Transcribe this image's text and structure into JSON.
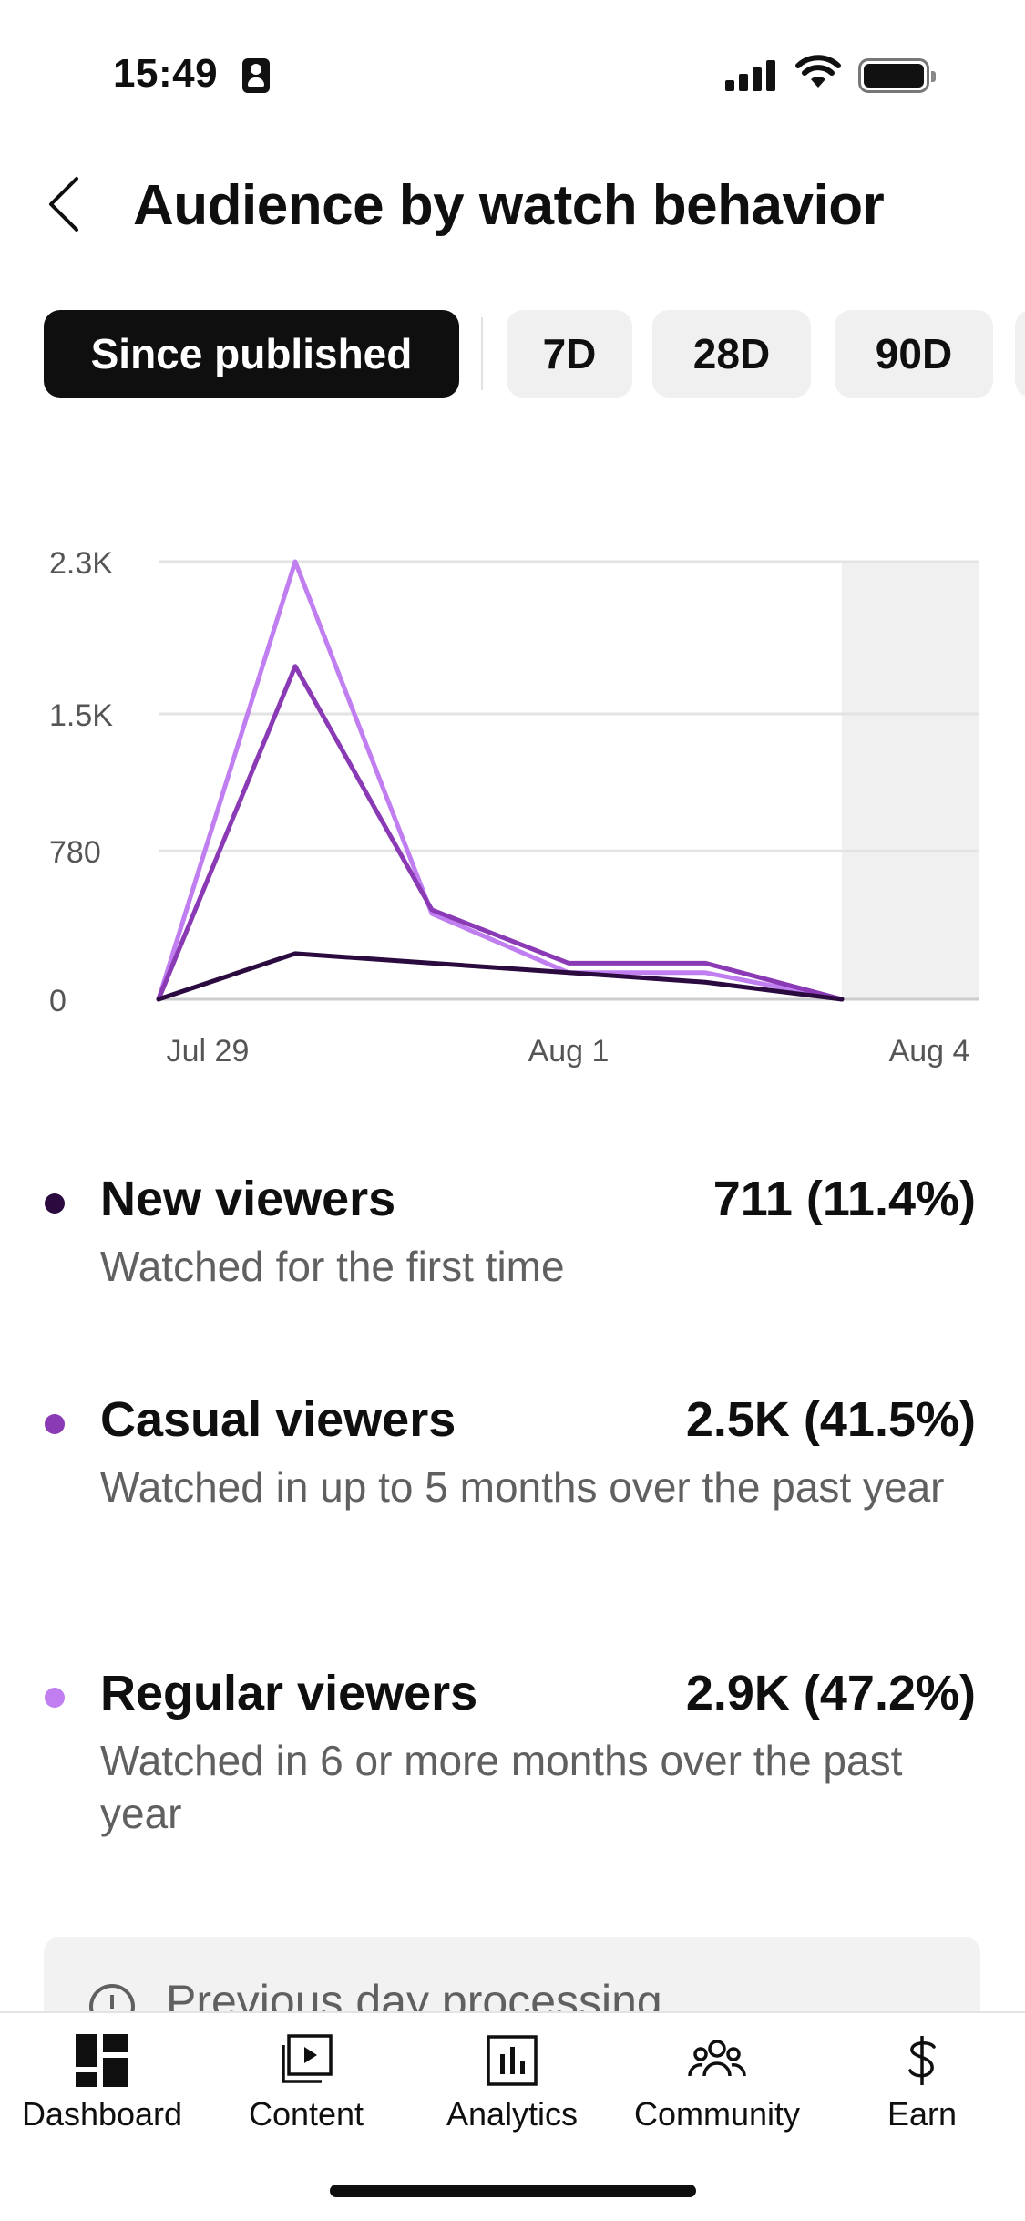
{
  "status_bar": {
    "time": "15:49"
  },
  "header": {
    "title": "Audience by watch behavior"
  },
  "chips": [
    {
      "label": "Since published",
      "active": true
    },
    {
      "label": "7D",
      "active": false
    },
    {
      "label": "28D",
      "active": false
    },
    {
      "label": "90D",
      "active": false
    }
  ],
  "chart_data": {
    "type": "line",
    "x": [
      "Jul 29",
      "Jul 30",
      "Jul 31",
      "Aug 1",
      "Aug 2",
      "Aug 3"
    ],
    "x_tick_labels": [
      "Jul 29",
      "Aug 1",
      "Aug 4"
    ],
    "y_tick_labels": [
      "0",
      "780",
      "1.5K",
      "2.3K"
    ],
    "y_ticks": [
      0,
      780,
      1500,
      2300
    ],
    "ylim": [
      0,
      2300
    ],
    "grid": true,
    "series": [
      {
        "name": "New viewers",
        "color": "#2a0a3f",
        "values": [
          0,
          240,
          190,
          140,
          90,
          0
        ]
      },
      {
        "name": "Casual viewers",
        "color": "#8a3ab4",
        "values": [
          0,
          1750,
          470,
          190,
          190,
          0
        ]
      },
      {
        "name": "Regular viewers",
        "color": "#c07ef0",
        "values": [
          0,
          2300,
          450,
          140,
          140,
          0
        ]
      }
    ],
    "shaded_region_from": "Aug 4"
  },
  "legend": [
    {
      "name": "New viewers",
      "value": "711 (11.4%)",
      "description": "Watched for the first time",
      "color": "#2a0a3f"
    },
    {
      "name": "Casual viewers",
      "value": "2.5K (41.5%)",
      "description": "Watched in up to 5 months over the past year",
      "color": "#8a3ab4"
    },
    {
      "name": "Regular viewers",
      "value": "2.9K (47.2%)",
      "description": "Watched in 6 or more months over the past year",
      "color": "#c07ef0"
    }
  ],
  "notice": {
    "text": "Previous day processing",
    "icon": "clock-icon"
  },
  "bottom_nav": [
    {
      "label": "Dashboard",
      "icon": "dashboard-icon"
    },
    {
      "label": "Content",
      "icon": "content-icon"
    },
    {
      "label": "Analytics",
      "icon": "analytics-icon"
    },
    {
      "label": "Community",
      "icon": "community-icon"
    },
    {
      "label": "Earn",
      "icon": "earn-icon"
    }
  ]
}
